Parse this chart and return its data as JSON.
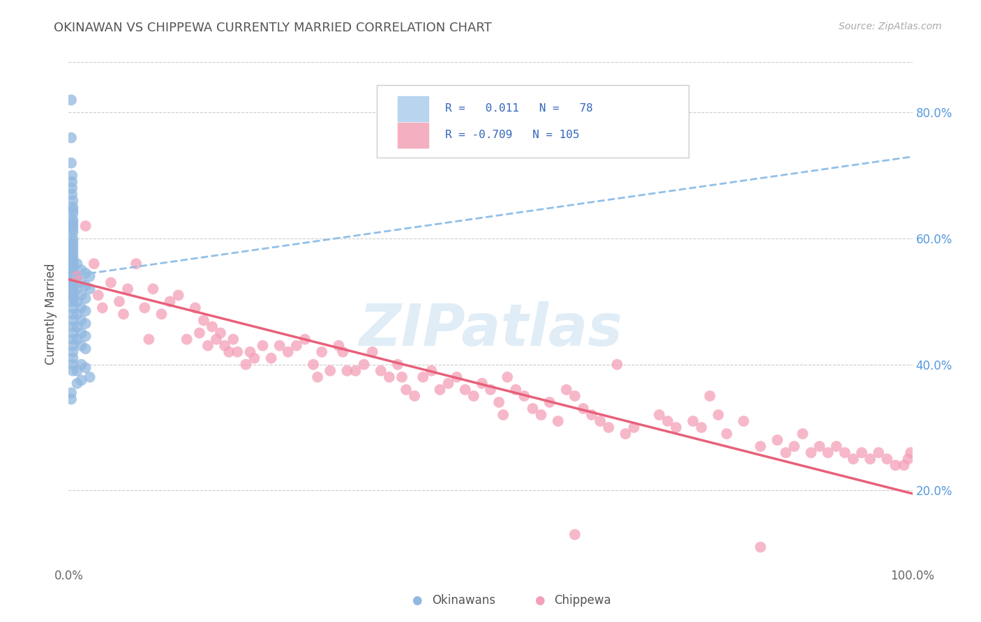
{
  "title": "OKINAWAN VS CHIPPEWA CURRENTLY MARRIED CORRELATION CHART",
  "source_text": "Source: ZipAtlas.com",
  "ylabel": "Currently Married",
  "xlim": [
    0.0,
    1.0
  ],
  "ylim": [
    0.08,
    0.88
  ],
  "xtick_positions": [
    0.0,
    0.25,
    0.5,
    0.75,
    1.0
  ],
  "xtick_labels": [
    "0.0%",
    "",
    "",
    "",
    "100.0%"
  ],
  "ytick_positions": [
    0.2,
    0.4,
    0.6,
    0.8
  ],
  "ytick_labels": [
    "20.0%",
    "40.0%",
    "60.0%",
    "80.0%"
  ],
  "okinawan_color": "#91b8e0",
  "chippewa_color": "#f4a0b8",
  "okinawan_trend_color": "#91c0e8",
  "chippewa_trend_color": "#e8607a",
  "background_color": "#ffffff",
  "watermark": "ZIPatlas",
  "okinawan_trend": [
    0.0,
    0.54,
    1.0,
    0.73
  ],
  "chippewa_trend": [
    0.0,
    0.535,
    1.0,
    0.195
  ],
  "okinawan_points": [
    [
      0.003,
      0.82
    ],
    [
      0.003,
      0.76
    ],
    [
      0.003,
      0.72
    ],
    [
      0.004,
      0.7
    ],
    [
      0.004,
      0.69
    ],
    [
      0.004,
      0.68
    ],
    [
      0.004,
      0.67
    ],
    [
      0.005,
      0.66
    ],
    [
      0.005,
      0.65
    ],
    [
      0.005,
      0.645
    ],
    [
      0.005,
      0.64
    ],
    [
      0.005,
      0.63
    ],
    [
      0.005,
      0.625
    ],
    [
      0.005,
      0.62
    ],
    [
      0.005,
      0.615
    ],
    [
      0.005,
      0.61
    ],
    [
      0.005,
      0.6
    ],
    [
      0.005,
      0.595
    ],
    [
      0.005,
      0.59
    ],
    [
      0.005,
      0.585
    ],
    [
      0.005,
      0.58
    ],
    [
      0.005,
      0.575
    ],
    [
      0.005,
      0.57
    ],
    [
      0.005,
      0.565
    ],
    [
      0.005,
      0.56
    ],
    [
      0.005,
      0.555
    ],
    [
      0.005,
      0.55
    ],
    [
      0.005,
      0.545
    ],
    [
      0.005,
      0.54
    ],
    [
      0.005,
      0.535
    ],
    [
      0.005,
      0.53
    ],
    [
      0.005,
      0.525
    ],
    [
      0.005,
      0.52
    ],
    [
      0.005,
      0.515
    ],
    [
      0.005,
      0.51
    ],
    [
      0.005,
      0.505
    ],
    [
      0.005,
      0.5
    ],
    [
      0.005,
      0.49
    ],
    [
      0.005,
      0.48
    ],
    [
      0.005,
      0.47
    ],
    [
      0.005,
      0.46
    ],
    [
      0.005,
      0.45
    ],
    [
      0.005,
      0.44
    ],
    [
      0.005,
      0.43
    ],
    [
      0.005,
      0.42
    ],
    [
      0.005,
      0.41
    ],
    [
      0.005,
      0.4
    ],
    [
      0.005,
      0.39
    ],
    [
      0.01,
      0.56
    ],
    [
      0.01,
      0.54
    ],
    [
      0.01,
      0.52
    ],
    [
      0.01,
      0.5
    ],
    [
      0.01,
      0.48
    ],
    [
      0.01,
      0.46
    ],
    [
      0.01,
      0.44
    ],
    [
      0.01,
      0.39
    ],
    [
      0.01,
      0.37
    ],
    [
      0.015,
      0.55
    ],
    [
      0.015,
      0.53
    ],
    [
      0.015,
      0.51
    ],
    [
      0.015,
      0.49
    ],
    [
      0.015,
      0.47
    ],
    [
      0.015,
      0.45
    ],
    [
      0.015,
      0.43
    ],
    [
      0.015,
      0.4
    ],
    [
      0.015,
      0.375
    ],
    [
      0.02,
      0.545
    ],
    [
      0.02,
      0.525
    ],
    [
      0.02,
      0.505
    ],
    [
      0.02,
      0.485
    ],
    [
      0.02,
      0.465
    ],
    [
      0.02,
      0.445
    ],
    [
      0.02,
      0.425
    ],
    [
      0.02,
      0.395
    ],
    [
      0.025,
      0.54
    ],
    [
      0.025,
      0.52
    ],
    [
      0.025,
      0.38
    ],
    [
      0.003,
      0.355
    ],
    [
      0.003,
      0.345
    ]
  ],
  "chippewa_points": [
    [
      0.01,
      0.54
    ],
    [
      0.02,
      0.62
    ],
    [
      0.03,
      0.56
    ],
    [
      0.035,
      0.51
    ],
    [
      0.04,
      0.49
    ],
    [
      0.05,
      0.53
    ],
    [
      0.06,
      0.5
    ],
    [
      0.065,
      0.48
    ],
    [
      0.07,
      0.52
    ],
    [
      0.08,
      0.56
    ],
    [
      0.09,
      0.49
    ],
    [
      0.095,
      0.44
    ],
    [
      0.1,
      0.52
    ],
    [
      0.11,
      0.48
    ],
    [
      0.12,
      0.5
    ],
    [
      0.13,
      0.51
    ],
    [
      0.14,
      0.44
    ],
    [
      0.15,
      0.49
    ],
    [
      0.155,
      0.45
    ],
    [
      0.16,
      0.47
    ],
    [
      0.165,
      0.43
    ],
    [
      0.17,
      0.46
    ],
    [
      0.175,
      0.44
    ],
    [
      0.18,
      0.45
    ],
    [
      0.185,
      0.43
    ],
    [
      0.19,
      0.42
    ],
    [
      0.195,
      0.44
    ],
    [
      0.2,
      0.42
    ],
    [
      0.21,
      0.4
    ],
    [
      0.215,
      0.42
    ],
    [
      0.22,
      0.41
    ],
    [
      0.23,
      0.43
    ],
    [
      0.24,
      0.41
    ],
    [
      0.25,
      0.43
    ],
    [
      0.26,
      0.42
    ],
    [
      0.27,
      0.43
    ],
    [
      0.28,
      0.44
    ],
    [
      0.29,
      0.4
    ],
    [
      0.295,
      0.38
    ],
    [
      0.3,
      0.42
    ],
    [
      0.31,
      0.39
    ],
    [
      0.32,
      0.43
    ],
    [
      0.325,
      0.42
    ],
    [
      0.33,
      0.39
    ],
    [
      0.34,
      0.39
    ],
    [
      0.35,
      0.4
    ],
    [
      0.36,
      0.42
    ],
    [
      0.37,
      0.39
    ],
    [
      0.38,
      0.38
    ],
    [
      0.39,
      0.4
    ],
    [
      0.395,
      0.38
    ],
    [
      0.4,
      0.36
    ],
    [
      0.41,
      0.35
    ],
    [
      0.42,
      0.38
    ],
    [
      0.43,
      0.39
    ],
    [
      0.44,
      0.36
    ],
    [
      0.45,
      0.37
    ],
    [
      0.46,
      0.38
    ],
    [
      0.47,
      0.36
    ],
    [
      0.48,
      0.35
    ],
    [
      0.49,
      0.37
    ],
    [
      0.5,
      0.36
    ],
    [
      0.51,
      0.34
    ],
    [
      0.515,
      0.32
    ],
    [
      0.52,
      0.38
    ],
    [
      0.53,
      0.36
    ],
    [
      0.54,
      0.35
    ],
    [
      0.55,
      0.33
    ],
    [
      0.56,
      0.32
    ],
    [
      0.57,
      0.34
    ],
    [
      0.58,
      0.31
    ],
    [
      0.59,
      0.36
    ],
    [
      0.6,
      0.35
    ],
    [
      0.61,
      0.33
    ],
    [
      0.62,
      0.32
    ],
    [
      0.63,
      0.31
    ],
    [
      0.64,
      0.3
    ],
    [
      0.65,
      0.4
    ],
    [
      0.66,
      0.29
    ],
    [
      0.67,
      0.3
    ],
    [
      0.7,
      0.32
    ],
    [
      0.71,
      0.31
    ],
    [
      0.72,
      0.3
    ],
    [
      0.74,
      0.31
    ],
    [
      0.75,
      0.3
    ],
    [
      0.76,
      0.35
    ],
    [
      0.77,
      0.32
    ],
    [
      0.78,
      0.29
    ],
    [
      0.8,
      0.31
    ],
    [
      0.82,
      0.27
    ],
    [
      0.84,
      0.28
    ],
    [
      0.85,
      0.26
    ],
    [
      0.86,
      0.27
    ],
    [
      0.87,
      0.29
    ],
    [
      0.88,
      0.26
    ],
    [
      0.89,
      0.27
    ],
    [
      0.9,
      0.26
    ],
    [
      0.91,
      0.27
    ],
    [
      0.92,
      0.26
    ],
    [
      0.93,
      0.25
    ],
    [
      0.94,
      0.26
    ],
    [
      0.95,
      0.25
    ],
    [
      0.96,
      0.26
    ],
    [
      0.97,
      0.25
    ],
    [
      0.98,
      0.24
    ],
    [
      0.6,
      0.13
    ],
    [
      0.82,
      0.11
    ],
    [
      0.99,
      0.24
    ],
    [
      0.995,
      0.25
    ],
    [
      0.998,
      0.26
    ]
  ]
}
